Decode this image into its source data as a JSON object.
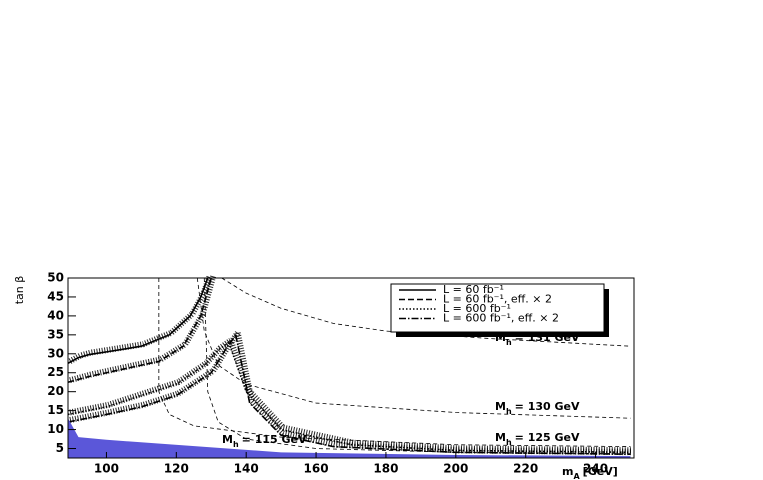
{
  "chart_data": {
    "type": "line",
    "x_label": {
      "symbol": "m",
      "subscript": "A",
      "text": "[GeV]"
    },
    "y_label": "tan β",
    "xlim": [
      89,
      251
    ],
    "ylim": [
      2.5,
      50
    ],
    "xticks": [
      100,
      120,
      140,
      160,
      180,
      200,
      220,
      240
    ],
    "yticks": [
      5,
      10,
      15,
      20,
      25,
      30,
      35,
      40,
      45,
      50
    ],
    "legend": "top-right",
    "series": [
      {
        "name": "L = 60 fb⁻¹",
        "color": "#000000",
        "line_style": "solid",
        "x": [
          89,
          92,
          95,
          100,
          110,
          118,
          124,
          127,
          129
        ],
        "values": [
          27.5,
          29,
          29.8,
          30.5,
          32,
          35,
          40,
          45,
          50
        ]
      },
      {
        "name": "L = 60 fb⁻¹, eff. × 2",
        "color": "#000000",
        "line_style": "dashed",
        "x": [
          89,
          95,
          105,
          115,
          122,
          127,
          130
        ],
        "values": [
          22.5,
          24,
          26,
          28,
          32,
          40,
          50
        ]
      },
      {
        "name": "L = 600 fb⁻¹",
        "color": "#000000",
        "line_style": "dotted",
        "x": [
          89,
          100,
          110,
          120,
          128,
          132,
          135,
          null,
          135,
          140,
          150,
          170,
          200,
          250
        ],
        "values": [
          14,
          16,
          19,
          22,
          27,
          31,
          33,
          null,
          33,
          20,
          10,
          6,
          4.5,
          4
        ]
      },
      {
        "name": "L = 600 fb⁻¹, eff. × 2",
        "color": "#000000",
        "line_style": "dashdot",
        "x": [
          89,
          100,
          110,
          120,
          130,
          134,
          137,
          null,
          137,
          141,
          150,
          165,
          200,
          250
        ],
        "values": [
          12,
          14,
          16,
          19,
          25,
          31,
          35,
          null,
          35,
          17,
          8.5,
          5.5,
          4,
          3.5
        ]
      },
      {
        "type": "area",
        "color": "#5b57d9",
        "x": [
          89,
          92,
          100,
          150,
          200,
          250
        ],
        "values": [
          13,
          8,
          7.3,
          4,
          3.3,
          3
        ]
      }
    ],
    "contours": [
      {
        "symbol": "M",
        "subscript": "h",
        "text": "= 131 GeV",
        "x": [
          133,
          140,
          150,
          165,
          180,
          210,
          250
        ],
        "values": [
          50,
          46,
          42,
          38,
          36,
          34,
          32
        ]
      },
      {
        "symbol": "M",
        "subscript": "h",
        "text": "= 130 GeV",
        "x": [
          126,
          128,
          132,
          140,
          160,
          200,
          250
        ],
        "values": [
          50,
          36,
          27,
          22,
          17,
          14.5,
          13
        ]
      },
      {
        "symbol": "M",
        "subscript": "h",
        "text": "= 125 GeV",
        "x": [
          115,
          115,
          118,
          125,
          150,
          200,
          250
        ],
        "values": [
          50,
          20,
          14,
          11,
          8,
          6,
          5.5
        ]
      },
      {
        "symbol": "M",
        "subscript": "h",
        "text": "= 115 GeV",
        "x": [
          128,
          129,
          132,
          140,
          160,
          200,
          250
        ],
        "values": [
          50,
          20,
          12,
          7.5,
          5,
          4,
          3.6
        ]
      }
    ]
  }
}
